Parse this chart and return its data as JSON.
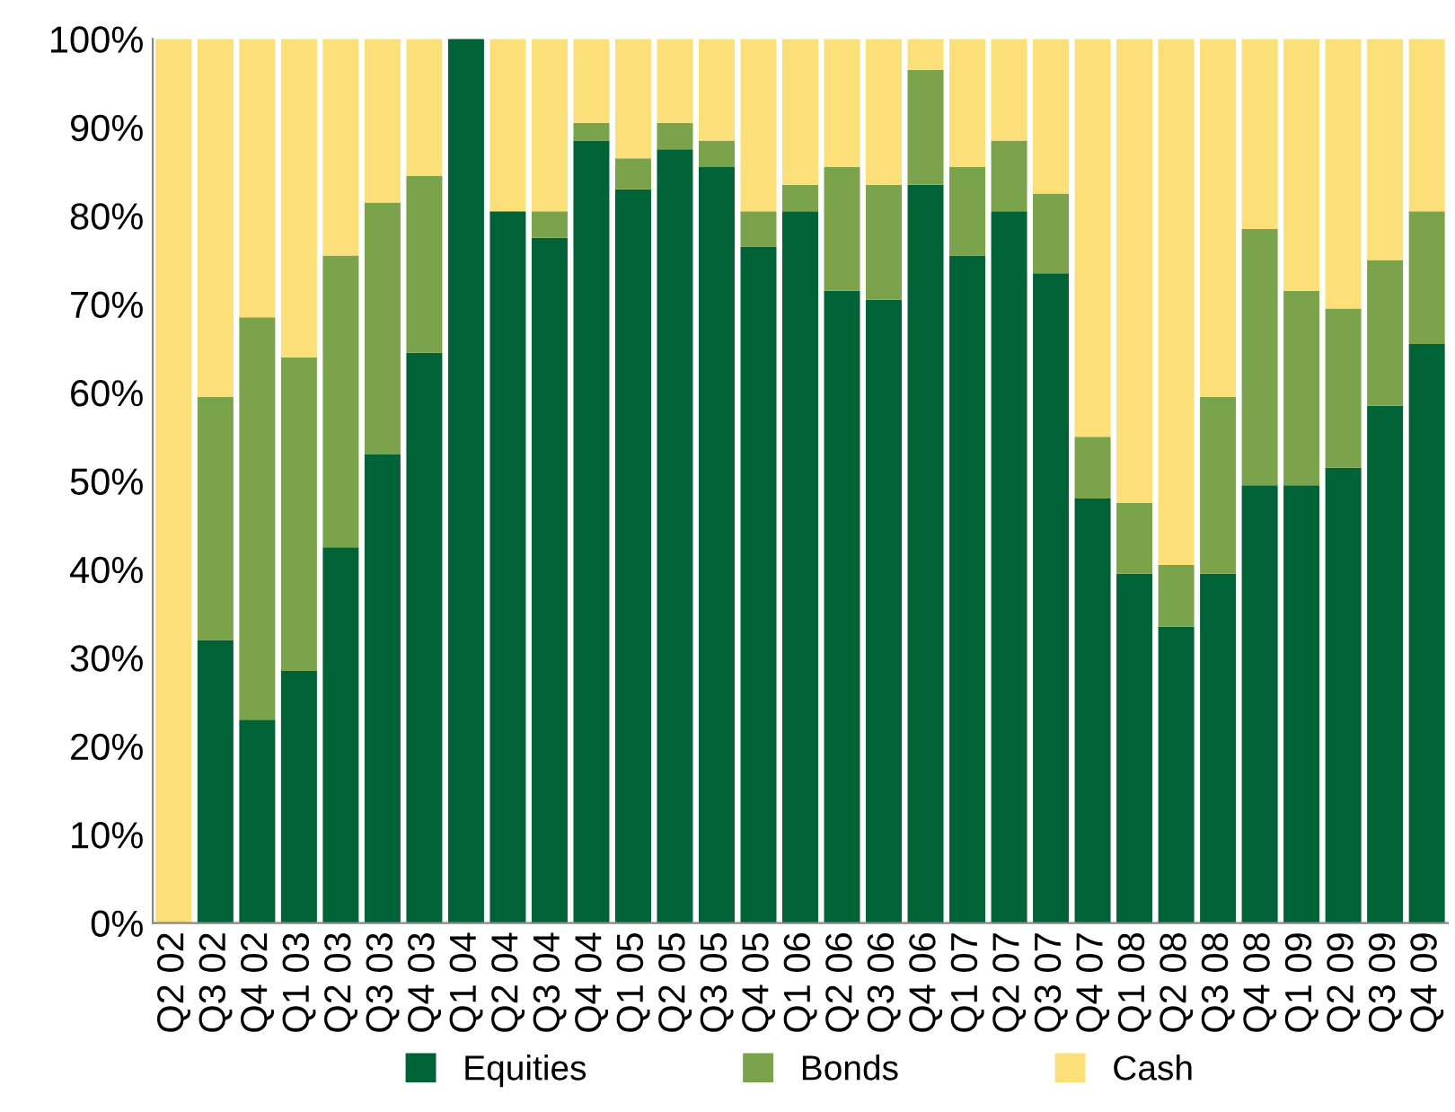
{
  "chart_data": {
    "type": "bar",
    "stacked": true,
    "categories": [
      "Q2 02",
      "Q3 02",
      "Q4 02",
      "Q1 03",
      "Q2 03",
      "Q3 03",
      "Q4 03",
      "Q1 04",
      "Q2 04",
      "Q3 04",
      "Q4 04",
      "Q1 05",
      "Q2 05",
      "Q3 05",
      "Q4 05",
      "Q1 06",
      "Q2 06",
      "Q3 06",
      "Q4 06",
      "Q1 07",
      "Q2 07",
      "Q3 07",
      "Q4 07",
      "Q1 08",
      "Q2 08",
      "Q3 08",
      "Q4 08",
      "Q1 09",
      "Q2 09",
      "Q3 09",
      "Q4 09"
    ],
    "series": [
      {
        "name": "Equities",
        "color": "#006338",
        "values": [
          0,
          32,
          23,
          28.5,
          42.5,
          53,
          64.5,
          100,
          80.5,
          77.5,
          88.5,
          83,
          87.5,
          85.5,
          76.5,
          80.5,
          71.5,
          70.5,
          83.5,
          75.5,
          80.5,
          73.5,
          48,
          39.5,
          33.5,
          39.5,
          49.5,
          49.5,
          51.5,
          58.5,
          65.5
        ]
      },
      {
        "name": "Bonds",
        "color": "#7ba34c",
        "values": [
          0,
          27.5,
          45.5,
          35.5,
          33,
          28.5,
          20,
          0,
          0,
          3,
          2,
          3.5,
          3,
          3,
          4,
          3,
          14,
          13,
          13,
          10,
          8,
          9,
          7,
          8,
          7,
          20,
          29,
          22,
          18,
          16.5,
          15
        ]
      },
      {
        "name": "Cash",
        "color": "#fbe07a",
        "values": [
          100,
          40.5,
          31.5,
          36,
          24.5,
          18.5,
          15.5,
          0,
          19.5,
          19.5,
          9.5,
          13.5,
          9.5,
          11.5,
          19.5,
          16.5,
          14.5,
          16.5,
          3.5,
          14.5,
          11.5,
          17.5,
          45,
          52.5,
          59.5,
          40.5,
          21.5,
          28.5,
          30.5,
          25,
          19.5
        ]
      }
    ],
    "ylim": [
      0,
      100
    ],
    "yticks": [
      {
        "value": 0,
        "label": "0%"
      },
      {
        "value": 10,
        "label": "10%"
      },
      {
        "value": 20,
        "label": "20%"
      },
      {
        "value": 30,
        "label": "30%"
      },
      {
        "value": 40,
        "label": "40%"
      },
      {
        "value": 50,
        "label": "50%"
      },
      {
        "value": 60,
        "label": "60%"
      },
      {
        "value": 70,
        "label": "70%"
      },
      {
        "value": 80,
        "label": "80%"
      },
      {
        "value": 90,
        "label": "90%"
      },
      {
        "value": 100,
        "label": "100%"
      }
    ],
    "grid": false,
    "legend": "bottom"
  }
}
